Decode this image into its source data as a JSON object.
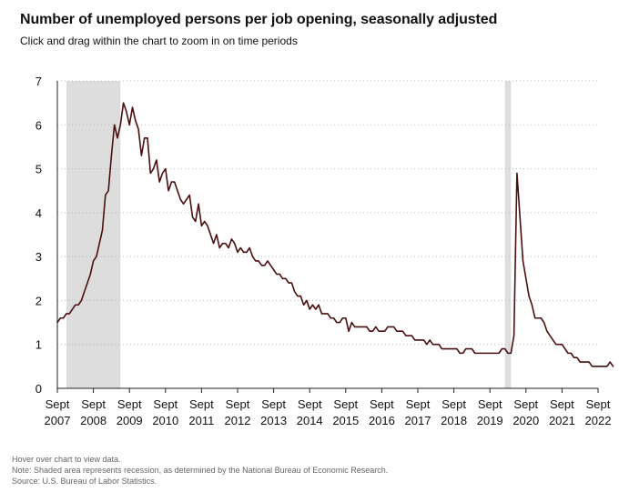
{
  "header": {
    "title": "Number of unemployed persons per job opening, seasonally adjusted",
    "subtitle": "Click and drag within the chart to zoom in on time periods"
  },
  "footer": {
    "hover_note": "Hover over chart to view data.",
    "recession_note": "Note: Shaded area represents recession, as determined by the National Bureau of Economic Research.",
    "source": "Source: U.S. Bureau of Labor Statistics."
  },
  "colors": {
    "line": "#4a0f0f",
    "recession": "#dddddd",
    "grid": "#bbbbbb",
    "axis": "#222222"
  },
  "chart_data": {
    "type": "line",
    "title": "Number of unemployed persons per job opening, seasonally adjusted",
    "xlabel": "",
    "ylabel": "",
    "ylim": [
      0,
      7
    ],
    "xlim": [
      "2007-09",
      "2022-09"
    ],
    "yticks": [
      0,
      1,
      2,
      3,
      4,
      5,
      6,
      7
    ],
    "grid": true,
    "xticks": [
      {
        "month": "Sept",
        "year": "2007",
        "date": "2007-09"
      },
      {
        "month": "Sept",
        "year": "2008",
        "date": "2008-09"
      },
      {
        "month": "Sept",
        "year": "2009",
        "date": "2009-09"
      },
      {
        "month": "Sept",
        "year": "2010",
        "date": "2010-09"
      },
      {
        "month": "Sept",
        "year": "2011",
        "date": "2011-09"
      },
      {
        "month": "Sept",
        "year": "2012",
        "date": "2012-09"
      },
      {
        "month": "Sept",
        "year": "2013",
        "date": "2013-09"
      },
      {
        "month": "Sept",
        "year": "2014",
        "date": "2014-09"
      },
      {
        "month": "Sept",
        "year": "2015",
        "date": "2015-09"
      },
      {
        "month": "Sept",
        "year": "2016",
        "date": "2016-09"
      },
      {
        "month": "Sept",
        "year": "2017",
        "date": "2017-09"
      },
      {
        "month": "Sept",
        "year": "2018",
        "date": "2018-09"
      },
      {
        "month": "Sept",
        "year": "2019",
        "date": "2019-09"
      },
      {
        "month": "Sept",
        "year": "2020",
        "date": "2020-09"
      },
      {
        "month": "Sept",
        "year": "2021",
        "date": "2021-09"
      },
      {
        "month": "Sept",
        "year": "2022",
        "date": "2022-09"
      }
    ],
    "recessions": [
      {
        "start": "2007-12",
        "end": "2009-06"
      },
      {
        "start": "2020-02",
        "end": "2020-04"
      }
    ],
    "series": [
      {
        "name": "Unemployed persons per job opening",
        "start": "2007-09",
        "frequency": "monthly",
        "values": [
          1.5,
          1.6,
          1.6,
          1.7,
          1.7,
          1.8,
          1.9,
          1.9,
          2.0,
          2.2,
          2.4,
          2.6,
          2.9,
          3.0,
          3.3,
          3.6,
          4.4,
          4.5,
          5.3,
          6.0,
          5.7,
          6.0,
          6.5,
          6.3,
          6.0,
          6.4,
          6.1,
          5.9,
          5.3,
          5.7,
          5.7,
          4.9,
          5.0,
          5.2,
          4.7,
          4.9,
          5.0,
          4.5,
          4.7,
          4.7,
          4.5,
          4.3,
          4.2,
          4.3,
          4.4,
          3.9,
          3.8,
          4.2,
          3.7,
          3.8,
          3.7,
          3.5,
          3.3,
          3.5,
          3.2,
          3.3,
          3.3,
          3.2,
          3.4,
          3.3,
          3.1,
          3.2,
          3.1,
          3.1,
          3.2,
          3.0,
          2.9,
          2.9,
          2.8,
          2.8,
          2.9,
          2.8,
          2.7,
          2.6,
          2.6,
          2.5,
          2.5,
          2.4,
          2.4,
          2.2,
          2.1,
          2.1,
          1.9,
          2.0,
          1.8,
          1.9,
          1.8,
          1.9,
          1.7,
          1.7,
          1.7,
          1.6,
          1.6,
          1.5,
          1.5,
          1.6,
          1.6,
          1.3,
          1.5,
          1.4,
          1.4,
          1.4,
          1.4,
          1.4,
          1.3,
          1.3,
          1.4,
          1.3,
          1.3,
          1.3,
          1.4,
          1.4,
          1.4,
          1.3,
          1.3,
          1.3,
          1.2,
          1.2,
          1.2,
          1.1,
          1.1,
          1.1,
          1.1,
          1.0,
          1.1,
          1.0,
          1.0,
          1.0,
          0.9,
          0.9,
          0.9,
          0.9,
          0.9,
          0.9,
          0.8,
          0.8,
          0.9,
          0.9,
          0.9,
          0.8,
          0.8,
          0.8,
          0.8,
          0.8,
          0.8,
          0.8,
          0.8,
          0.8,
          0.9,
          0.9,
          0.8,
          0.8,
          1.2,
          4.9,
          3.9,
          2.9,
          2.5,
          2.1,
          1.9,
          1.6,
          1.6,
          1.6,
          1.5,
          1.3,
          1.2,
          1.1,
          1.0,
          1.0,
          1.0,
          0.9,
          0.8,
          0.8,
          0.7,
          0.7,
          0.6,
          0.6,
          0.6,
          0.6,
          0.5,
          0.5,
          0.5,
          0.5,
          0.5,
          0.5,
          0.6,
          0.5
        ]
      }
    ]
  }
}
